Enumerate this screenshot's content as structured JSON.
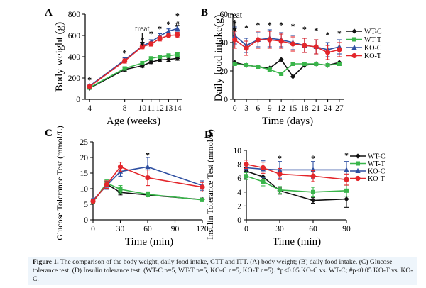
{
  "figure": {
    "caption": {
      "label": "Figure 1.",
      "text": " The comparison of the body weight, daily food intake, GTT and ITT. (A) body weight; (B) daily food intake. (C) Glucose tolerance test. (D) Insulin tolerance test. (WT-C n=5, WT-T n=5, KO-C n=5, KO-T n=5). *p<0.05 KO-C vs. WT-C; #p<0.05 KO-T vs. KO-C."
    },
    "colors": {
      "WT-C": "#111111",
      "WT-T": "#39b54a",
      "KO-C": "#2e4fa1",
      "KO-T": "#e3262b",
      "caption_bg": "#eef5fb"
    }
  },
  "chart_data": [
    {
      "panel": "A",
      "type": "line",
      "ylabel": "Body weight (g)",
      "xlabel": "Age (weeks)",
      "x": [
        4,
        8,
        10,
        11,
        12,
        13,
        14
      ],
      "xticks": [
        "4",
        "8",
        "10",
        "11",
        "12",
        "13",
        "14"
      ],
      "ylim": [
        0,
        800
      ],
      "yticks": [
        "0",
        "200",
        "400",
        "600",
        "800"
      ],
      "series": [
        {
          "name": "WT-C",
          "values": [
            105,
            280,
            315,
            350,
            370,
            375,
            385
          ],
          "err": [
            8,
            15,
            15,
            15,
            15,
            18,
            18
          ]
        },
        {
          "name": "WT-T",
          "values": [
            110,
            290,
            340,
            385,
            400,
            410,
            420
          ],
          "err": [
            8,
            15,
            15,
            15,
            15,
            18,
            18
          ]
        },
        {
          "name": "KO-C",
          "values": [
            125,
            370,
            500,
            540,
            595,
            640,
            665
          ],
          "err": [
            10,
            20,
            20,
            20,
            22,
            22,
            25
          ]
        },
        {
          "name": "KO-T",
          "values": [
            120,
            360,
            495,
            520,
            570,
            600,
            605
          ],
          "err": [
            10,
            20,
            20,
            20,
            22,
            22,
            25
          ]
        }
      ],
      "annotations": [
        {
          "text": "*",
          "x": 4,
          "y": 190
        },
        {
          "text": "*",
          "x": 8,
          "y": 445
        },
        {
          "text": "*",
          "x": 10,
          "y": 565
        },
        {
          "text": "*",
          "x": 11,
          "y": 625
        },
        {
          "text": "*",
          "x": 12,
          "y": 670
        },
        {
          "text": "*",
          "x": 13,
          "y": 715
        },
        {
          "text": "#",
          "x": 14,
          "y": 715
        },
        {
          "text": "*",
          "x": 14,
          "y": 790
        }
      ],
      "treat_label": "treat",
      "treat_x": 10
    },
    {
      "panel": "B",
      "type": "line",
      "ylabel": "Daily food intake(g)",
      "xlabel": "Time (days)",
      "x": [
        0,
        3,
        6,
        9,
        12,
        15,
        18,
        21,
        24,
        27
      ],
      "xticks": [
        "0",
        "3",
        "6",
        "9",
        "12",
        "15",
        "18",
        "21",
        "24",
        "27"
      ],
      "ylim": [
        0,
        60
      ],
      "yticks": [
        "0",
        "20",
        "40",
        "60"
      ],
      "series": [
        {
          "name": "WT-C",
          "values": [
            26,
            24,
            23,
            22,
            28,
            16,
            24,
            25,
            24,
            26
          ],
          "err": [
            0,
            0,
            0,
            0,
            0,
            0,
            0,
            0,
            0,
            0
          ]
        },
        {
          "name": "WT-T",
          "values": [
            25,
            24,
            23,
            21,
            18,
            25,
            25,
            25,
            24,
            25
          ],
          "err": [
            0,
            0,
            0,
            0,
            0,
            0,
            0,
            0,
            0,
            0
          ]
        },
        {
          "name": "KO-C",
          "values": [
            45,
            38,
            42,
            43,
            42,
            40,
            38,
            37,
            35,
            37
          ],
          "err": [
            6,
            5,
            5,
            6,
            5,
            5,
            5,
            5,
            5,
            5
          ]
        },
        {
          "name": "KO-T",
          "values": [
            42,
            36,
            42,
            42,
            41,
            39,
            38,
            37,
            33,
            35
          ],
          "err": [
            6,
            5,
            6,
            6,
            5,
            5,
            5,
            5,
            5,
            5
          ]
        }
      ],
      "annotations": [
        {
          "text": "*",
          "x": 0,
          "y": 54
        },
        {
          "text": "*",
          "x": 3,
          "y": 51
        },
        {
          "text": "*",
          "x": 6,
          "y": 53
        },
        {
          "text": "*",
          "x": 9,
          "y": 53
        },
        {
          "text": "*",
          "x": 12,
          "y": 53
        },
        {
          "text": "*",
          "x": 15,
          "y": 52
        },
        {
          "text": "*",
          "x": 18,
          "y": 50
        },
        {
          "text": "*",
          "x": 21,
          "y": 49
        },
        {
          "text": "*",
          "x": 24,
          "y": 46
        },
        {
          "text": "*",
          "x": 27,
          "y": 47
        }
      ],
      "treat_label": "treat",
      "treat_x": 0,
      "legend": [
        "WT-C",
        "WT-T",
        "KO-C",
        "KO-T"
      ],
      "legend_position": "top-right"
    },
    {
      "panel": "C",
      "type": "line",
      "ylabel": "Glucose Tolerance Test (mmol/L)",
      "xlabel": "Time (min)",
      "x": [
        0,
        15,
        30,
        60,
        120
      ],
      "xticks": [
        "0",
        "30",
        "60",
        "90",
        "120"
      ],
      "xlim": [
        0,
        120
      ],
      "ylim": [
        0,
        25
      ],
      "yticks": [
        "0",
        "5",
        "10",
        "15",
        "20",
        "25"
      ],
      "series": [
        {
          "name": "WT-C",
          "values": [
            5.8,
            11.5,
            8.8,
            8.0,
            6.5
          ],
          "err": [
            0.5,
            1.0,
            0.8,
            0.6,
            0.5
          ]
        },
        {
          "name": "WT-T",
          "values": [
            5.8,
            11.8,
            9.8,
            8.2,
            6.4
          ],
          "err": [
            0.5,
            1.0,
            1.2,
            0.8,
            0.5
          ]
        },
        {
          "name": "KO-C",
          "values": [
            6.3,
            11.0,
            15.5,
            17.0,
            11.0
          ],
          "err": [
            0.5,
            1.2,
            1.5,
            3.0,
            1.5
          ]
        },
        {
          "name": "KO-T",
          "values": [
            6.0,
            11.3,
            17.0,
            13.5,
            10.5
          ],
          "err": [
            0.5,
            1.2,
            1.5,
            2.5,
            1.5
          ]
        }
      ],
      "annotations": [
        {
          "text": "*",
          "x": 60,
          "y": 21
        }
      ]
    },
    {
      "panel": "D",
      "type": "line",
      "ylabel": "Insulin Tolerance Test (mmol/L)",
      "xlabel": "Time (min)",
      "x": [
        0,
        15,
        30,
        60,
        90
      ],
      "xticks": [
        "0",
        "30",
        "60",
        "90"
      ],
      "xlim": [
        0,
        90
      ],
      "ylim": [
        0,
        10
      ],
      "yticks": [
        "0",
        "2",
        "4",
        "6",
        "8",
        "10"
      ],
      "series": [
        {
          "name": "WT-C",
          "values": [
            7.0,
            6.2,
            4.2,
            2.8,
            3.0
          ],
          "err": [
            0.5,
            1.0,
            0.5,
            0.4,
            1.2
          ]
        },
        {
          "name": "WT-T",
          "values": [
            6.3,
            5.5,
            4.3,
            4.0,
            4.2
          ],
          "err": [
            0.5,
            0.6,
            0.5,
            0.7,
            0.8
          ]
        },
        {
          "name": "KO-C",
          "values": [
            7.5,
            7.3,
            7.2,
            7.2,
            7.2
          ],
          "err": [
            0.6,
            1.2,
            1.2,
            1.2,
            1.2
          ]
        },
        {
          "name": "KO-T",
          "values": [
            8.0,
            7.5,
            6.6,
            6.3,
            5.8
          ],
          "err": [
            0.6,
            0.8,
            0.8,
            0.8,
            0.8
          ]
        }
      ],
      "annotations": [
        {
          "text": "*",
          "x": 30,
          "y": 9.0
        },
        {
          "text": "*",
          "x": 60,
          "y": 9.0
        },
        {
          "text": "*",
          "x": 90,
          "y": 9.4
        }
      ],
      "legend": [
        "WT-C",
        "WT-T",
        "KO-C",
        "KO-T"
      ],
      "legend_position": "top-right"
    }
  ]
}
